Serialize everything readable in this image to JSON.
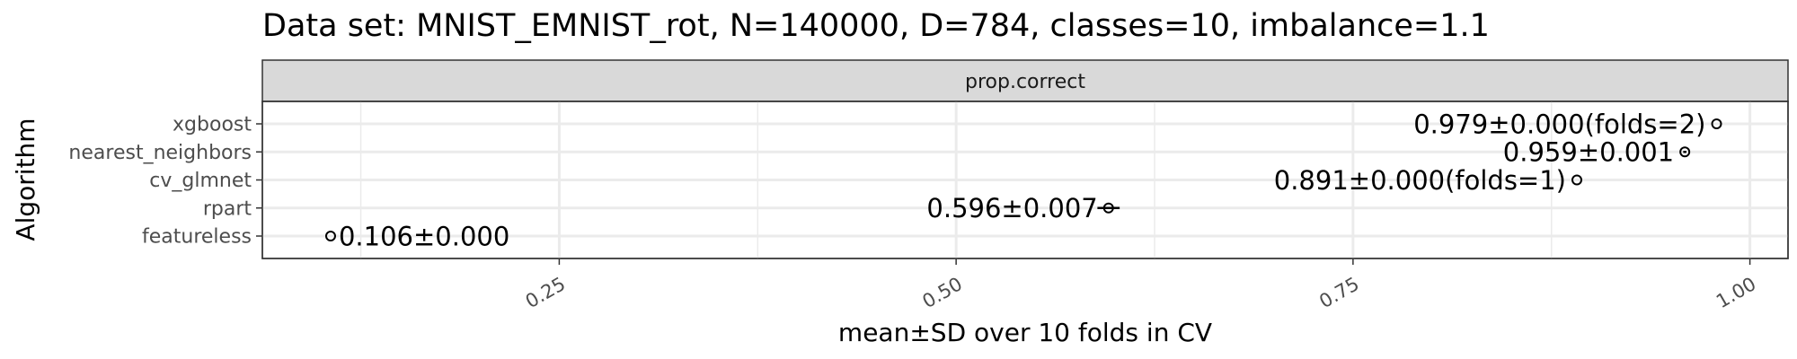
{
  "chart_data": {
    "type": "scatter",
    "title": "Data set: MNIST_EMNIST_rot, N=140000, D=784, classes=10, imbalance=1.1",
    "facet_label": "prop.correct",
    "xlabel": "mean±SD over 10 folds in CV",
    "ylabel": "Algorithm",
    "xlim": [
      0.063,
      1.024
    ],
    "x_ticks": [
      0.25,
      0.5,
      0.75,
      1.0
    ],
    "x_tick_labels": [
      "0.25",
      "0.50",
      "0.75",
      "1.00"
    ],
    "categories": [
      "xgboost",
      "nearest_neighbors",
      "cv_glmnet",
      "rpart",
      "featureless"
    ],
    "points": [
      {
        "algorithm": "xgboost",
        "mean": 0.979,
        "sd": 0.0,
        "label": "0.979±0.000(folds=2)"
      },
      {
        "algorithm": "nearest_neighbors",
        "mean": 0.959,
        "sd": 0.001,
        "label": "0.959±0.001"
      },
      {
        "algorithm": "cv_glmnet",
        "mean": 0.891,
        "sd": 0.0,
        "label": "0.891±0.000(folds=1)"
      },
      {
        "algorithm": "rpart",
        "mean": 0.596,
        "sd": 0.007,
        "label": "0.596±0.007"
      },
      {
        "algorithm": "featureless",
        "mean": 0.106,
        "sd": 0.0,
        "label": "0.106±0.000"
      }
    ],
    "grid": true,
    "colors": {
      "panel_border": "#333333",
      "strip_fill": "#d9d9d9",
      "grid": "#ebebeb",
      "text": "#000000",
      "axis_text": "#4d4d4d"
    }
  }
}
